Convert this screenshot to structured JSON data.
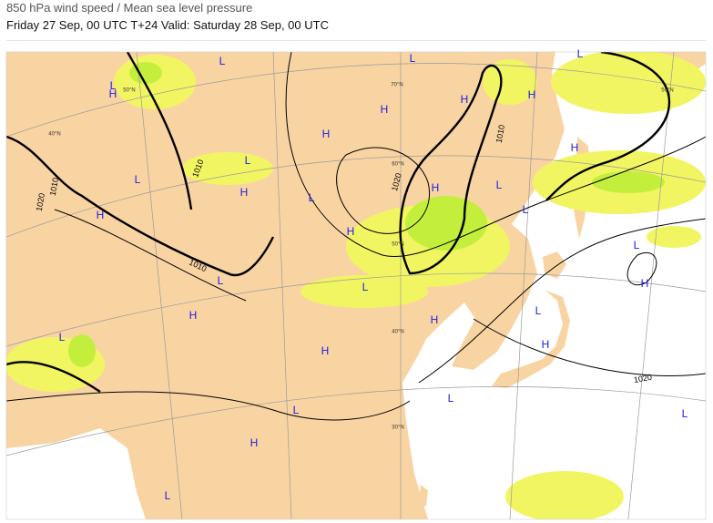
{
  "header": {
    "title": "850 hPa wind speed / Mean sea level pressure",
    "subtitle": "Friday 27 Sep, 00 UTC T+24 Valid: Saturday 28 Sep, 00 UTC"
  },
  "pressure_centers": [
    "L",
    "L",
    "H",
    "L",
    "H",
    "H",
    "H",
    "L",
    "L",
    "H",
    "L",
    "H",
    "H",
    "H",
    "L",
    "L",
    "H",
    "L",
    "H",
    "L",
    "H",
    "L",
    "L",
    "L",
    "H",
    "H",
    "H",
    "L",
    "L",
    "L",
    "H",
    "H",
    "L",
    "L"
  ],
  "isobar_labels": [
    "1010",
    "1010",
    "1010",
    "1010",
    "1020",
    "1020",
    "1020"
  ],
  "latitude_labels": [
    "50°N",
    "40°N",
    "70°N",
    "60°N",
    "50°N",
    "50°N",
    "40°N",
    "30°N"
  ]
}
